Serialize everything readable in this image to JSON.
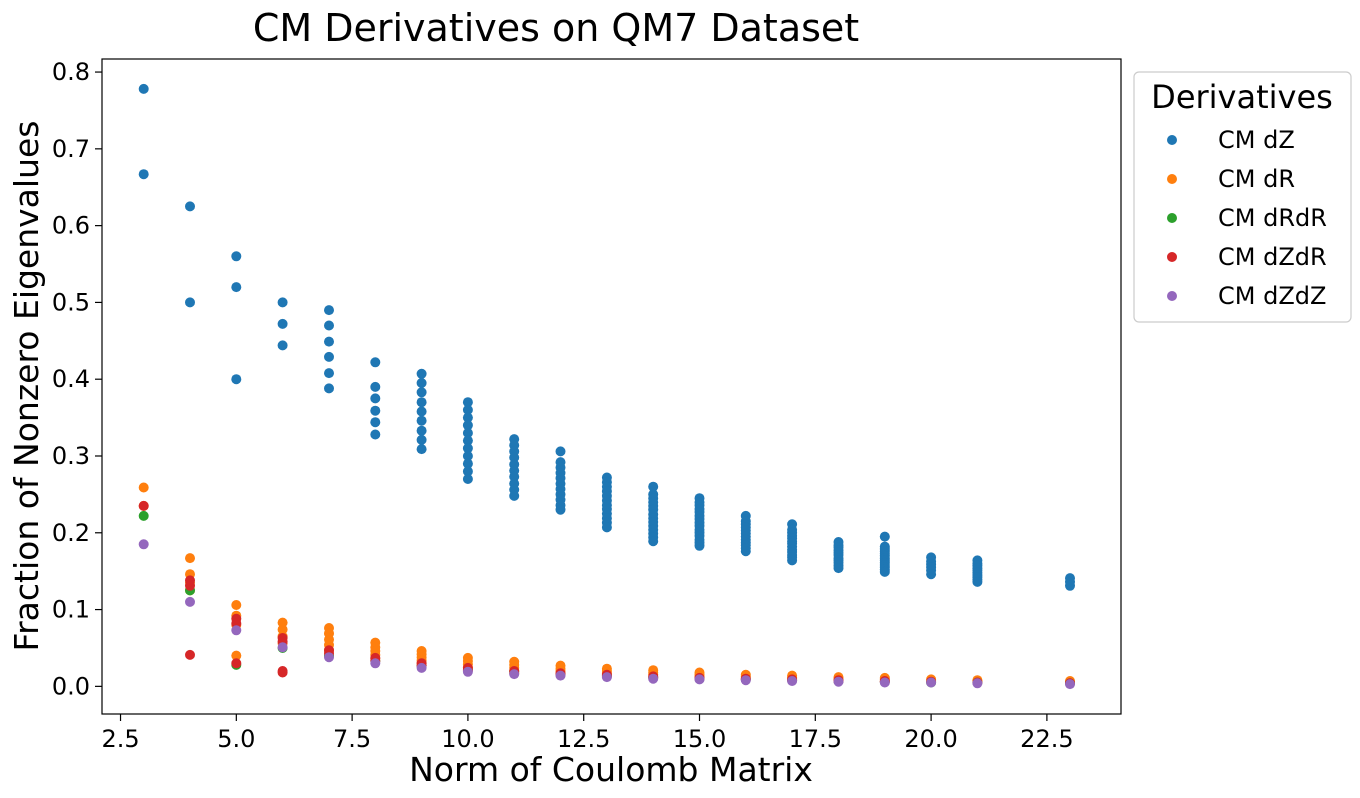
{
  "chart_data": {
    "type": "scatter",
    "title": "CM Derivatives on QM7 Dataset",
    "xlabel": "Norm of Coulomb Matrix",
    "ylabel": "Fraction of Nonzero Eigenvalues",
    "xlim": [
      2.1,
      24.1
    ],
    "ylim": [
      -0.036,
      0.817
    ],
    "xticks": [
      "2.5",
      "5.0",
      "7.5",
      "10.0",
      "12.5",
      "15.0",
      "17.5",
      "20.0",
      "22.5"
    ],
    "yticks": [
      "0.0",
      "0.1",
      "0.2",
      "0.3",
      "0.4",
      "0.5",
      "0.6",
      "0.7",
      "0.8"
    ],
    "grid": false,
    "legend": {
      "title": "Derivatives",
      "placement": "outside-upper-right"
    },
    "series": [
      {
        "name": "CM dZ",
        "color": "#1f77b4",
        "points": [
          [
            3,
            0.778
          ],
          [
            3,
            0.667
          ],
          [
            4,
            0.625
          ],
          [
            4,
            0.5
          ],
          [
            5,
            0.56
          ],
          [
            5,
            0.52
          ],
          [
            5,
            0.4
          ],
          [
            6,
            0.5
          ],
          [
            6,
            0.472
          ],
          [
            6,
            0.444
          ],
          [
            7,
            0.49
          ],
          [
            7,
            0.47
          ],
          [
            7,
            0.449
          ],
          [
            7,
            0.429
          ],
          [
            7,
            0.408
          ],
          [
            7,
            0.388
          ],
          [
            8,
            0.422
          ],
          [
            8,
            0.39
          ],
          [
            8,
            0.375
          ],
          [
            8,
            0.359
          ],
          [
            8,
            0.344
          ],
          [
            8,
            0.328
          ],
          [
            9,
            0.407
          ],
          [
            9,
            0.395
          ],
          [
            9,
            0.383
          ],
          [
            9,
            0.37
          ],
          [
            9,
            0.358
          ],
          [
            9,
            0.346
          ],
          [
            9,
            0.333
          ],
          [
            9,
            0.321
          ],
          [
            9,
            0.309
          ],
          [
            10,
            0.37
          ],
          [
            10,
            0.36
          ],
          [
            10,
            0.35
          ],
          [
            10,
            0.34
          ],
          [
            10,
            0.33
          ],
          [
            10,
            0.32
          ],
          [
            10,
            0.31
          ],
          [
            10,
            0.3
          ],
          [
            10,
            0.29
          ],
          [
            10,
            0.28
          ],
          [
            10,
            0.27
          ],
          [
            11,
            0.322
          ],
          [
            11,
            0.314
          ],
          [
            11,
            0.306
          ],
          [
            11,
            0.298
          ],
          [
            11,
            0.289
          ],
          [
            11,
            0.281
          ],
          [
            11,
            0.273
          ],
          [
            11,
            0.264
          ],
          [
            11,
            0.256
          ],
          [
            11,
            0.248
          ],
          [
            12,
            0.306
          ],
          [
            12,
            0.292
          ],
          [
            12,
            0.285
          ],
          [
            12,
            0.278
          ],
          [
            12,
            0.271
          ],
          [
            12,
            0.264
          ],
          [
            12,
            0.257
          ],
          [
            12,
            0.25
          ],
          [
            12,
            0.243
          ],
          [
            12,
            0.236
          ],
          [
            12,
            0.23
          ],
          [
            13,
            0.272
          ],
          [
            13,
            0.266
          ],
          [
            13,
            0.26
          ],
          [
            13,
            0.254
          ],
          [
            13,
            0.248
          ],
          [
            13,
            0.242
          ],
          [
            13,
            0.236
          ],
          [
            13,
            0.231
          ],
          [
            13,
            0.225
          ],
          [
            13,
            0.219
          ],
          [
            13,
            0.213
          ],
          [
            13,
            0.207
          ],
          [
            14,
            0.26
          ],
          [
            14,
            0.25
          ],
          [
            14,
            0.245
          ],
          [
            14,
            0.24
          ],
          [
            14,
            0.235
          ],
          [
            14,
            0.23
          ],
          [
            14,
            0.224
          ],
          [
            14,
            0.219
          ],
          [
            14,
            0.214
          ],
          [
            14,
            0.209
          ],
          [
            14,
            0.204
          ],
          [
            14,
            0.199
          ],
          [
            14,
            0.194
          ],
          [
            14,
            0.189
          ],
          [
            15,
            0.245
          ],
          [
            15,
            0.24
          ],
          [
            15,
            0.236
          ],
          [
            15,
            0.231
          ],
          [
            15,
            0.227
          ],
          [
            15,
            0.222
          ],
          [
            15,
            0.218
          ],
          [
            15,
            0.213
          ],
          [
            15,
            0.209
          ],
          [
            15,
            0.204
          ],
          [
            15,
            0.2
          ],
          [
            15,
            0.196
          ],
          [
            15,
            0.191
          ],
          [
            15,
            0.187
          ],
          [
            15,
            0.183
          ],
          [
            16,
            0.222
          ],
          [
            16,
            0.215
          ],
          [
            16,
            0.211
          ],
          [
            16,
            0.207
          ],
          [
            16,
            0.203
          ],
          [
            16,
            0.199
          ],
          [
            16,
            0.195
          ],
          [
            16,
            0.191
          ],
          [
            16,
            0.187
          ],
          [
            16,
            0.184
          ],
          [
            16,
            0.18
          ],
          [
            16,
            0.176
          ],
          [
            17,
            0.211
          ],
          [
            17,
            0.204
          ],
          [
            17,
            0.2
          ],
          [
            17,
            0.196
          ],
          [
            17,
            0.193
          ],
          [
            17,
            0.189
          ],
          [
            17,
            0.186
          ],
          [
            17,
            0.182
          ],
          [
            17,
            0.178
          ],
          [
            17,
            0.175
          ],
          [
            17,
            0.171
          ],
          [
            17,
            0.168
          ],
          [
            17,
            0.164
          ],
          [
            18,
            0.188
          ],
          [
            18,
            0.184
          ],
          [
            18,
            0.181
          ],
          [
            18,
            0.177
          ],
          [
            18,
            0.174
          ],
          [
            18,
            0.171
          ],
          [
            18,
            0.167
          ],
          [
            18,
            0.164
          ],
          [
            18,
            0.161
          ],
          [
            18,
            0.157
          ],
          [
            18,
            0.154
          ],
          [
            19,
            0.195
          ],
          [
            19,
            0.182
          ],
          [
            19,
            0.179
          ],
          [
            19,
            0.176
          ],
          [
            19,
            0.173
          ],
          [
            19,
            0.17
          ],
          [
            19,
            0.167
          ],
          [
            19,
            0.164
          ],
          [
            19,
            0.161
          ],
          [
            19,
            0.158
          ],
          [
            19,
            0.155
          ],
          [
            19,
            0.152
          ],
          [
            19,
            0.149
          ],
          [
            20,
            0.168
          ],
          [
            20,
            0.163
          ],
          [
            20,
            0.159
          ],
          [
            20,
            0.155
          ],
          [
            20,
            0.151
          ],
          [
            20,
            0.146
          ],
          [
            21,
            0.164
          ],
          [
            21,
            0.16
          ],
          [
            21,
            0.157
          ],
          [
            21,
            0.154
          ],
          [
            21,
            0.151
          ],
          [
            21,
            0.148
          ],
          [
            21,
            0.145
          ],
          [
            21,
            0.142
          ],
          [
            21,
            0.139
          ],
          [
            21,
            0.136
          ],
          [
            23,
            0.141
          ],
          [
            23,
            0.136
          ],
          [
            23,
            0.131
          ]
        ]
      },
      {
        "name": "CM dR",
        "color": "#ff7f0e",
        "points": [
          [
            3,
            0.259
          ],
          [
            3,
            0.235
          ],
          [
            4,
            0.167
          ],
          [
            4,
            0.146
          ],
          [
            4,
            0.135
          ],
          [
            4,
            0.125
          ],
          [
            5,
            0.106
          ],
          [
            5,
            0.092
          ],
          [
            5,
            0.08
          ],
          [
            5,
            0.04
          ],
          [
            6,
            0.083
          ],
          [
            6,
            0.074
          ],
          [
            6,
            0.065
          ],
          [
            6,
            0.056
          ],
          [
            7,
            0.076
          ],
          [
            7,
            0.069
          ],
          [
            7,
            0.061
          ],
          [
            7,
            0.054
          ],
          [
            7,
            0.047
          ],
          [
            7,
            0.04
          ],
          [
            8,
            0.057
          ],
          [
            8,
            0.051
          ],
          [
            8,
            0.046
          ],
          [
            8,
            0.041
          ],
          [
            8,
            0.036
          ],
          [
            9,
            0.046
          ],
          [
            9,
            0.042
          ],
          [
            9,
            0.038
          ],
          [
            9,
            0.034
          ],
          [
            9,
            0.03
          ],
          [
            10,
            0.037
          ],
          [
            10,
            0.033
          ],
          [
            10,
            0.029
          ],
          [
            10,
            0.025
          ],
          [
            11,
            0.032
          ],
          [
            11,
            0.028
          ],
          [
            11,
            0.024
          ],
          [
            11,
            0.021
          ],
          [
            12,
            0.027
          ],
          [
            12,
            0.023
          ],
          [
            12,
            0.02
          ],
          [
            13,
            0.023
          ],
          [
            13,
            0.02
          ],
          [
            13,
            0.017
          ],
          [
            14,
            0.021
          ],
          [
            14,
            0.018
          ],
          [
            14,
            0.015
          ],
          [
            15,
            0.018
          ],
          [
            15,
            0.015
          ],
          [
            15,
            0.013
          ],
          [
            16,
            0.015
          ],
          [
            16,
            0.013
          ],
          [
            16,
            0.011
          ],
          [
            17,
            0.014
          ],
          [
            17,
            0.012
          ],
          [
            17,
            0.01
          ],
          [
            18,
            0.012
          ],
          [
            18,
            0.01
          ],
          [
            19,
            0.011
          ],
          [
            19,
            0.009
          ],
          [
            20,
            0.009
          ],
          [
            20,
            0.008
          ],
          [
            21,
            0.008
          ],
          [
            21,
            0.007
          ],
          [
            23,
            0.007
          ],
          [
            23,
            0.006
          ]
        ]
      },
      {
        "name": "CM dRdR",
        "color": "#2ca02c",
        "points": [
          [
            3,
            0.222
          ],
          [
            4,
            0.125
          ],
          [
            5,
            0.028
          ],
          [
            6,
            0.05
          ],
          [
            7,
            0.04
          ],
          [
            8,
            0.033
          ],
          [
            9,
            0.027
          ],
          [
            10,
            0.022
          ],
          [
            11,
            0.019
          ],
          [
            12,
            0.016
          ],
          [
            13,
            0.014
          ],
          [
            14,
            0.012
          ],
          [
            15,
            0.01
          ],
          [
            16,
            0.009
          ],
          [
            17,
            0.008
          ],
          [
            18,
            0.007
          ],
          [
            19,
            0.006
          ],
          [
            20,
            0.005
          ],
          [
            21,
            0.005
          ],
          [
            23,
            0.004
          ]
        ]
      },
      {
        "name": "CM dZdR",
        "color": "#d62728",
        "points": [
          [
            3,
            0.235
          ],
          [
            4,
            0.138
          ],
          [
            4,
            0.131
          ],
          [
            4,
            0.041
          ],
          [
            5,
            0.088
          ],
          [
            5,
            0.082
          ],
          [
            5,
            0.03
          ],
          [
            6,
            0.063
          ],
          [
            6,
            0.058
          ],
          [
            6,
            0.02
          ],
          [
            6,
            0.018
          ],
          [
            7,
            0.047
          ],
          [
            7,
            0.043
          ],
          [
            8,
            0.037
          ],
          [
            8,
            0.033
          ],
          [
            9,
            0.03
          ],
          [
            9,
            0.027
          ],
          [
            10,
            0.024
          ],
          [
            10,
            0.021
          ],
          [
            11,
            0.02
          ],
          [
            11,
            0.017
          ],
          [
            12,
            0.017
          ],
          [
            12,
            0.015
          ],
          [
            13,
            0.015
          ],
          [
            13,
            0.013
          ],
          [
            14,
            0.013
          ],
          [
            14,
            0.011
          ],
          [
            15,
            0.011
          ],
          [
            15,
            0.01
          ],
          [
            16,
            0.01
          ],
          [
            16,
            0.009
          ],
          [
            17,
            0.009
          ],
          [
            17,
            0.008
          ],
          [
            18,
            0.008
          ],
          [
            18,
            0.007
          ],
          [
            19,
            0.007
          ],
          [
            19,
            0.006
          ],
          [
            20,
            0.006
          ],
          [
            21,
            0.005
          ],
          [
            23,
            0.004
          ]
        ]
      },
      {
        "name": "CM dZdZ",
        "color": "#9467bd",
        "points": [
          [
            3,
            0.185
          ],
          [
            4,
            0.11
          ],
          [
            5,
            0.073
          ],
          [
            6,
            0.051
          ],
          [
            7,
            0.038
          ],
          [
            8,
            0.03
          ],
          [
            9,
            0.024
          ],
          [
            10,
            0.019
          ],
          [
            11,
            0.016
          ],
          [
            12,
            0.014
          ],
          [
            13,
            0.012
          ],
          [
            14,
            0.01
          ],
          [
            15,
            0.009
          ],
          [
            16,
            0.008
          ],
          [
            17,
            0.007
          ],
          [
            18,
            0.006
          ],
          [
            19,
            0.005
          ],
          [
            20,
            0.005
          ],
          [
            21,
            0.004
          ],
          [
            23,
            0.003
          ]
        ]
      }
    ]
  }
}
